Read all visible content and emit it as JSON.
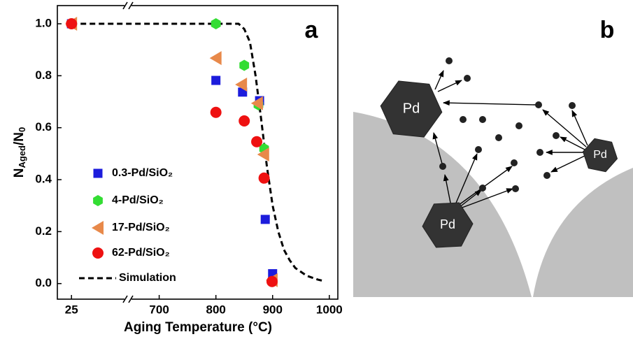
{
  "chart_data": {
    "type": "scatter",
    "panel_label": "a",
    "xlabel": "Aging Temperature (°C)",
    "ylabel": [
      "N",
      "Aged",
      "/N",
      "0"
    ],
    "x_segments": [
      {
        "xlim": [
          0,
          125
        ],
        "xticks": [
          25
        ]
      },
      {
        "xlim": [
          645,
          1015
        ],
        "xticks": [
          700,
          800,
          900,
          1000
        ]
      }
    ],
    "ylim": [
      -0.06,
      1.07
    ],
    "yticks": [
      {
        "value": 0,
        "label": "0.0"
      },
      0.2,
      0.4,
      0.6,
      0.8,
      {
        "value": 1,
        "label": "1.0"
      }
    ],
    "series": [
      {
        "name": "0.3-Pd/SiO₂",
        "color": "#1c1cdc",
        "marker": "square",
        "x": [
          25,
          800,
          847,
          877,
          887,
          900
        ],
        "values": [
          1.0,
          0.782,
          0.737,
          0.704,
          0.247,
          0.038
        ]
      },
      {
        "name": "4-Pd/SiO₂",
        "color": "#33dd33",
        "marker": "hexagon",
        "x": [
          25,
          800,
          850,
          875,
          885,
          900
        ],
        "values": [
          1.0,
          1.0,
          0.84,
          0.688,
          0.519,
          0.008
        ]
      },
      {
        "name": "17-Pd/SiO₂",
        "color": "#e8894a",
        "marker": "triangle-left",
        "x": [
          25,
          800,
          845,
          873,
          884,
          899
        ],
        "values": [
          1.0,
          0.868,
          0.766,
          0.694,
          0.497,
          0.013
        ]
      },
      {
        "name": "62-Pd/SiO₂",
        "color": "#ee1111",
        "marker": "circle",
        "x": [
          25,
          800,
          850,
          872,
          885,
          899
        ],
        "values": [
          1.0,
          0.659,
          0.626,
          0.546,
          0.406,
          0.008
        ]
      },
      {
        "name": "Simulation",
        "color": "#000000",
        "marker": "dashed-line",
        "x": [
          25,
          800,
          840,
          850,
          860,
          870,
          880,
          890,
          900,
          910,
          920,
          930,
          940,
          960,
          980,
          990
        ],
        "values": [
          1.0,
          1.0,
          1.0,
          0.98,
          0.93,
          0.8,
          0.63,
          0.45,
          0.3,
          0.2,
          0.13,
          0.09,
          0.06,
          0.03,
          0.015,
          0.01
        ]
      }
    ]
  },
  "diagram": {
    "label": "b",
    "nodes": [
      {
        "label": "Pd"
      },
      {
        "label": "Pd"
      },
      {
        "label": "Pd"
      }
    ]
  }
}
